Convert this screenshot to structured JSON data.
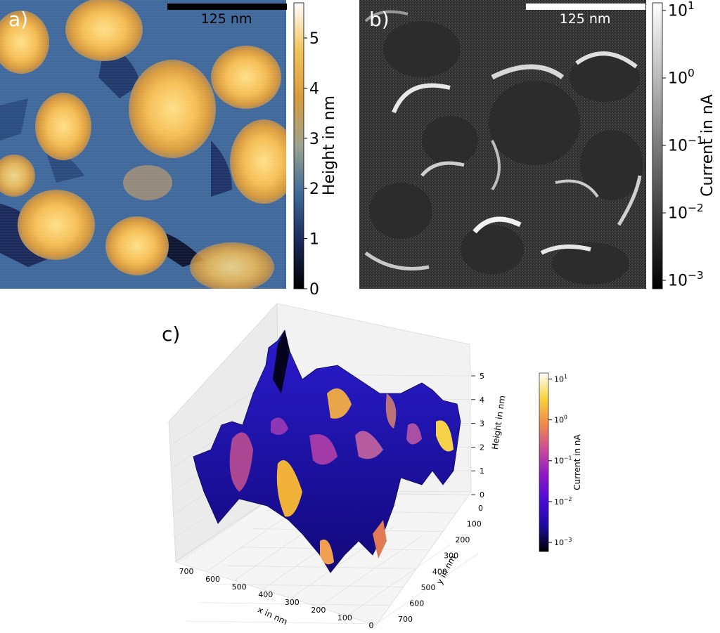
{
  "panels": {
    "a": {
      "label": "a)",
      "scale_bar": "125 nm",
      "colorbar": {
        "label": "Height in nm",
        "ticks": [
          "0",
          "1",
          "2",
          "3",
          "4",
          "5"
        ],
        "colors": [
          "#000000",
          "#1b2a5a",
          "#3e6a9a",
          "#9aa38e",
          "#d89a3e",
          "#f2c25a",
          "#ffffff"
        ]
      }
    },
    "b": {
      "label": "b)",
      "scale_bar": "125 nm",
      "colorbar": {
        "label": "Current in nA",
        "ticks": [
          {
            "base": "10",
            "exp": "1"
          },
          {
            "base": "10",
            "exp": "0"
          },
          {
            "base": "10",
            "exp": "−1"
          },
          {
            "base": "10",
            "exp": "−2"
          },
          {
            "base": "10",
            "exp": "−3"
          }
        ],
        "colors": [
          "#000000",
          "#3c3c3c",
          "#7a7a7a",
          "#bdbdbd",
          "#ffffff"
        ]
      }
    },
    "c": {
      "label": "c)",
      "zlabel": "Height in nm",
      "xlabel": "x in nm",
      "ylabel": "y in nm",
      "colorbar": {
        "label": "Current in nA",
        "ticks": [
          {
            "base": "10",
            "exp": "1"
          },
          {
            "base": "10",
            "exp": "0"
          },
          {
            "base": "10",
            "exp": "−1"
          },
          {
            "base": "10",
            "exp": "−2"
          },
          {
            "base": "10",
            "exp": "−3"
          }
        ],
        "colors": [
          "#000000",
          "#1c0aa0",
          "#4b0bd8",
          "#8f18c8",
          "#cc4a9a",
          "#f08a4a",
          "#f7d23a",
          "#ffffff"
        ]
      }
    }
  },
  "chart_data": [
    {
      "type": "heatmap",
      "panel": "a",
      "title": "",
      "colorbar_label": "Height in nm",
      "colorbar_range": [
        0,
        5.7
      ],
      "colorbar_ticks": [
        0,
        1,
        2,
        3,
        4,
        5
      ],
      "scale_bar_nm": 125
    },
    {
      "type": "heatmap",
      "panel": "b",
      "title": "",
      "colorbar_label": "Current in nA",
      "colorbar_scale": "log",
      "colorbar_range": [
        0.0007,
        15
      ],
      "colorbar_ticks": [
        10,
        1,
        0.1,
        0.01,
        0.001
      ],
      "scale_bar_nm": 125
    },
    {
      "type": "surface3d",
      "panel": "c",
      "xlabel": "x in nm",
      "ylabel": "y in nm",
      "zlabel": "Height in nm",
      "x_ticks": [
        700,
        600,
        500,
        400,
        300,
        200,
        100,
        0
      ],
      "y_ticks": [
        0,
        100,
        200,
        300,
        400,
        500,
        600,
        700
      ],
      "z_ticks": [
        0,
        1,
        2,
        3,
        4,
        5
      ],
      "colorbar_label": "Current in nA",
      "colorbar_scale": "log",
      "colorbar_ticks": [
        10,
        1,
        0.1,
        0.01,
        0.001
      ]
    }
  ]
}
